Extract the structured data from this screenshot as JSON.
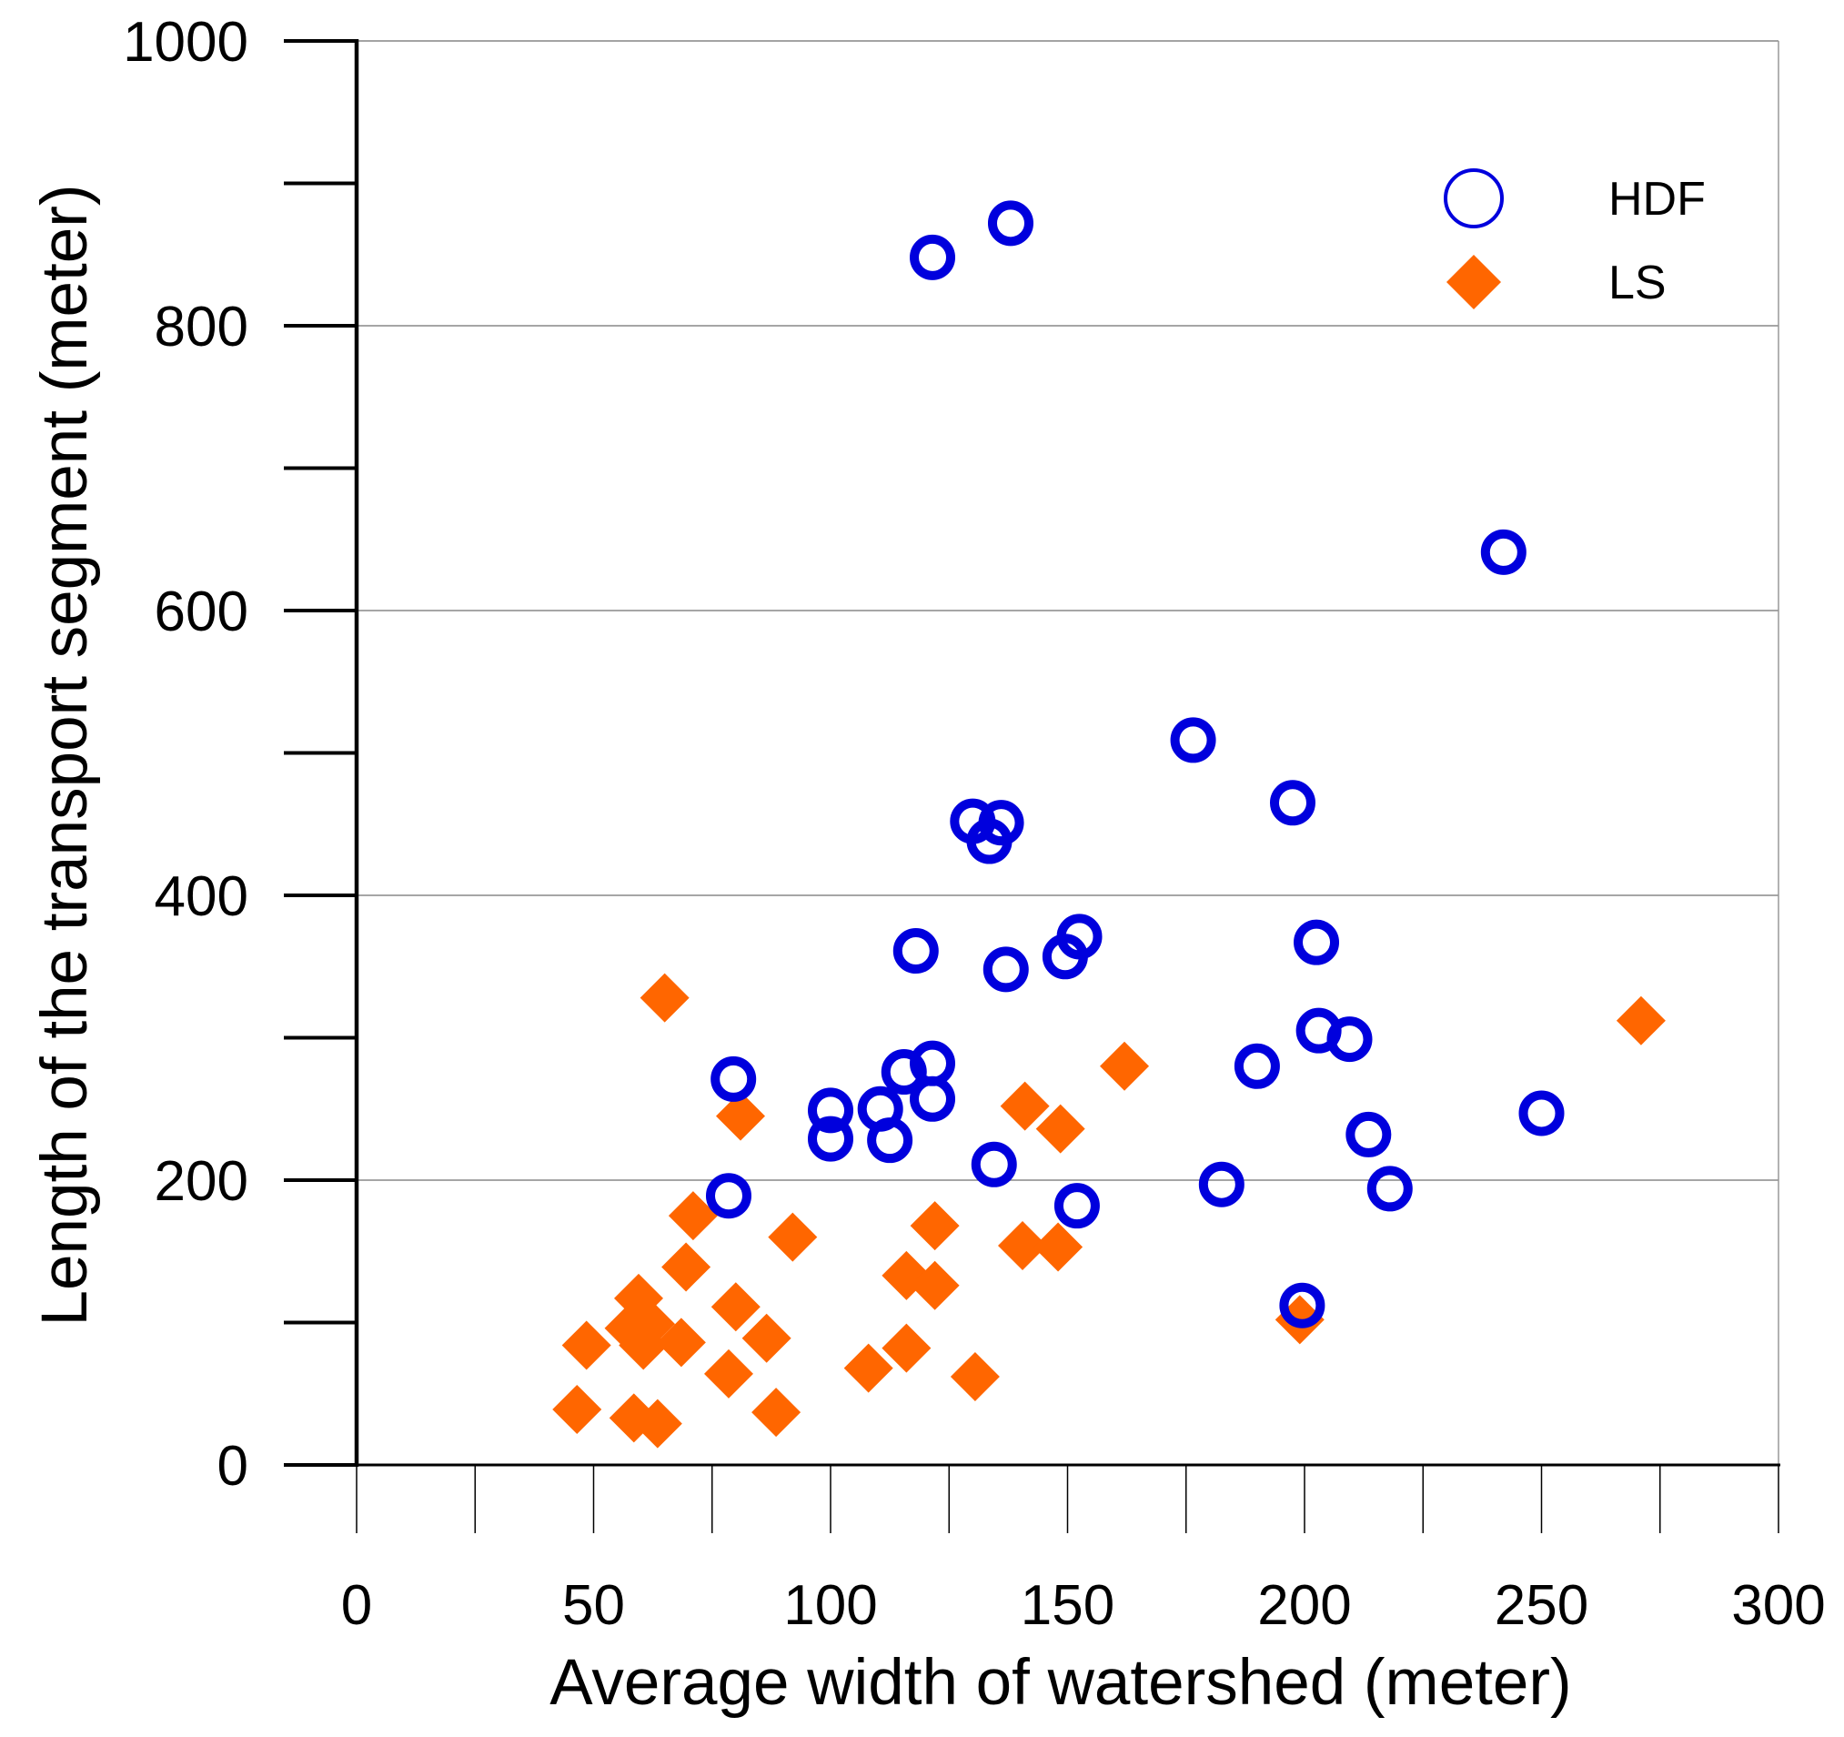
{
  "chart_data": {
    "type": "scatter",
    "title": "",
    "xlabel": "Average width of watershed (meter)",
    "ylabel": "Length of the transport segment (meter)",
    "xlim": [
      0,
      300
    ],
    "ylim": [
      0,
      1000
    ],
    "x_ticks": [
      0,
      50,
      100,
      150,
      200,
      250,
      300
    ],
    "x_tick_labels": [
      "0",
      "50",
      "100",
      "150",
      "200",
      "250",
      "300"
    ],
    "y_ticks": [
      0,
      200,
      400,
      600,
      800,
      1000
    ],
    "y_tick_labels": [
      "0",
      "200",
      "400",
      "600",
      "800",
      "1000"
    ],
    "grid": "horizontal",
    "legend_position": "top-right",
    "series": [
      {
        "name": "HDF",
        "marker": "open-circle",
        "color": "#0000dd",
        "points": [
          [
            121.5,
            848
          ],
          [
            138,
            872
          ],
          [
            242,
            641
          ],
          [
            176.5,
            509
          ],
          [
            197.5,
            465
          ],
          [
            130,
            452
          ],
          [
            136,
            451
          ],
          [
            133.5,
            438
          ],
          [
            202.5,
            367
          ],
          [
            118,
            361
          ],
          [
            152.5,
            371
          ],
          [
            149.5,
            357
          ],
          [
            137,
            348
          ],
          [
            203,
            305
          ],
          [
            209.5,
            299
          ],
          [
            79.5,
            271
          ],
          [
            190,
            280
          ],
          [
            121.5,
            282
          ],
          [
            115.5,
            276
          ],
          [
            121.5,
            257
          ],
          [
            100,
            249
          ],
          [
            110.5,
            250
          ],
          [
            100,
            229
          ],
          [
            112.5,
            228
          ],
          [
            213.5,
            232
          ],
          [
            250,
            247
          ],
          [
            134.5,
            211
          ],
          [
            182.5,
            197
          ],
          [
            218,
            194
          ],
          [
            78.5,
            189
          ],
          [
            152,
            182
          ],
          [
            199.5,
            112
          ]
        ]
      },
      {
        "name": "LS",
        "marker": "filled-diamond",
        "color": "#ff6600",
        "points": [
          [
            65,
            328
          ],
          [
            271,
            312
          ],
          [
            162,
            280
          ],
          [
            141,
            252
          ],
          [
            81,
            245
          ],
          [
            148.5,
            236
          ],
          [
            71,
            175
          ],
          [
            122,
            168
          ],
          [
            92,
            160
          ],
          [
            140.5,
            154
          ],
          [
            148,
            153
          ],
          [
            69.5,
            139
          ],
          [
            116,
            133
          ],
          [
            122,
            126
          ],
          [
            59.5,
            117
          ],
          [
            80,
            111
          ],
          [
            57.5,
            96
          ],
          [
            62,
            99
          ],
          [
            48.5,
            84
          ],
          [
            60.5,
            84
          ],
          [
            68.5,
            86
          ],
          [
            86.5,
            89
          ],
          [
            116,
            82
          ],
          [
            78.5,
            64
          ],
          [
            108,
            68
          ],
          [
            130.5,
            62
          ],
          [
            46.5,
            39
          ],
          [
            58.5,
            33
          ],
          [
            63.5,
            29
          ],
          [
            88.5,
            37
          ],
          [
            199,
            102
          ]
        ]
      }
    ]
  }
}
